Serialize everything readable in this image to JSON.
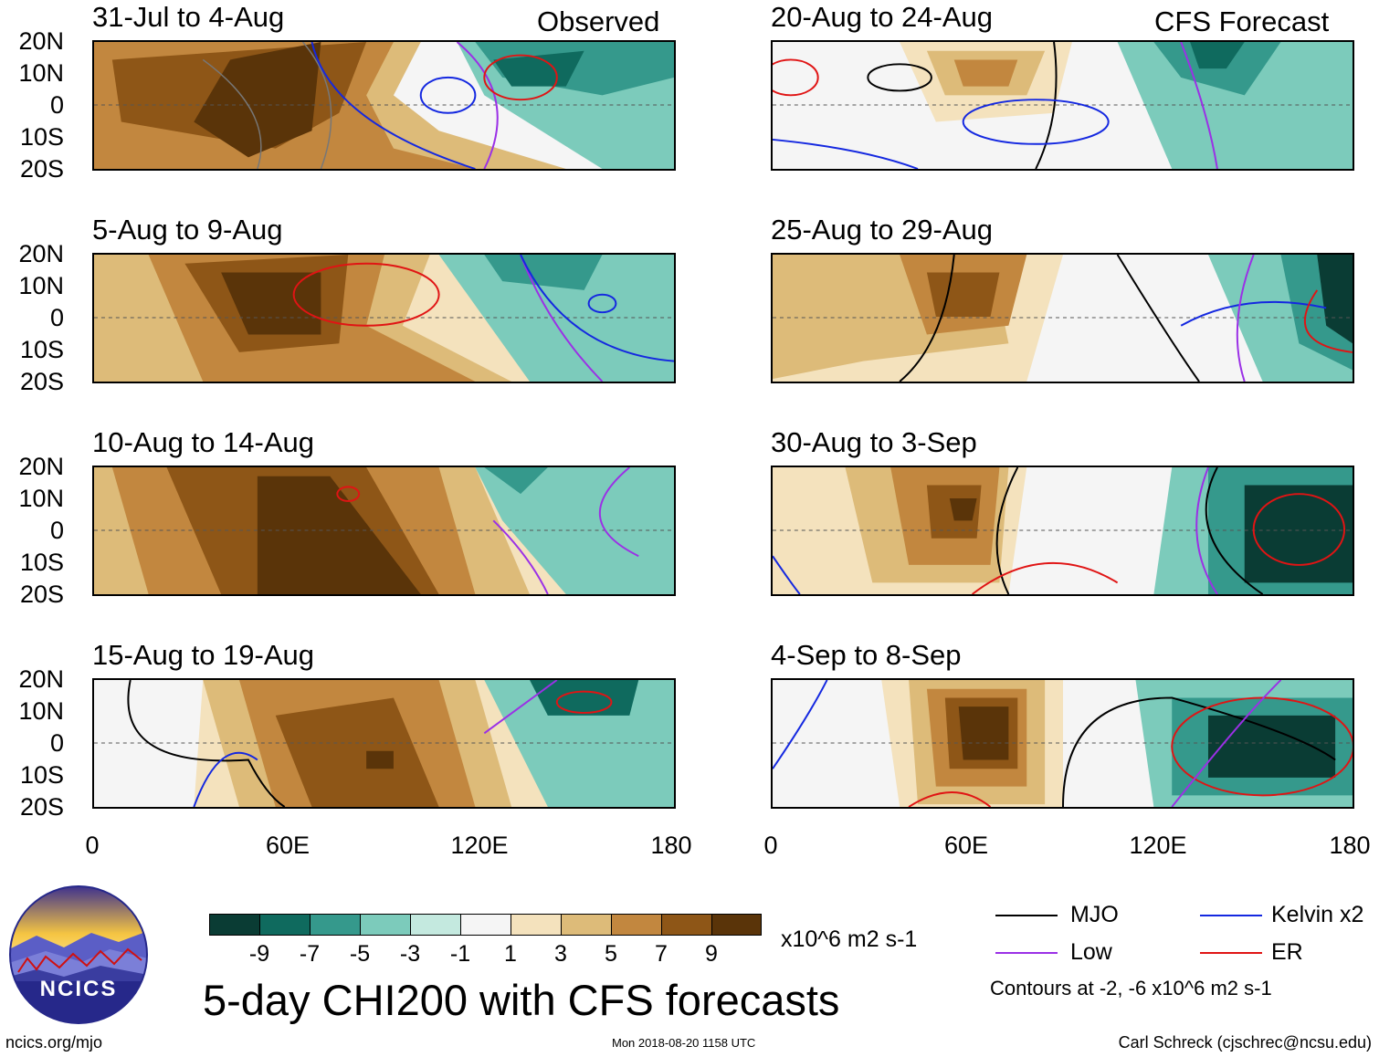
{
  "observed_label": "Observed",
  "forecast_label": "CFS Forecast",
  "panels_left": [
    {
      "title": "31-Jul to 4-Aug"
    },
    {
      "title": "5-Aug to 9-Aug"
    },
    {
      "title": "10-Aug to 14-Aug"
    },
    {
      "title": "15-Aug to 19-Aug"
    }
  ],
  "panels_right": [
    {
      "title": "20-Aug to 24-Aug"
    },
    {
      "title": "25-Aug to 29-Aug"
    },
    {
      "title": "30-Aug to 3-Sep"
    },
    {
      "title": "4-Sep to 8-Sep"
    }
  ],
  "lat_labels": [
    "20N",
    "10N",
    "0",
    "10S",
    "20S"
  ],
  "lon_labels": [
    "0",
    "60E",
    "120E",
    "180"
  ],
  "colorbar": {
    "colors": [
      "#0a3c34",
      "#0f6a5e",
      "#35998c",
      "#7ccbbb",
      "#c4e9df",
      "#f5f5f5",
      "#f4e2bd",
      "#ddbb79",
      "#c2873f",
      "#8e5617",
      "#5a3409"
    ],
    "labels": [
      "-9",
      "-7",
      "-5",
      "-3",
      "-1",
      "1",
      "3",
      "5",
      "7",
      "9"
    ],
    "units": "x10^6 m2 s-1"
  },
  "title": "5-day CHI200 with CFS forecasts",
  "legend": [
    {
      "label": "MJO",
      "color": "#000000"
    },
    {
      "label": "Kelvin x2",
      "color": "#1428e0"
    },
    {
      "label": "Low",
      "color": "#9b30e6"
    },
    {
      "label": "ER",
      "color": "#e01414"
    }
  ],
  "contours_note": "Contours at -2, -6 x10^6 m2 s-1",
  "logo_text": "NCICS",
  "footer_url": "ncics.org/mjo",
  "footer_date": "Mon 2018-08-20 1158 UTC",
  "footer_credit": "Carl Schreck (cjschrec@ncsu.edu)"
}
